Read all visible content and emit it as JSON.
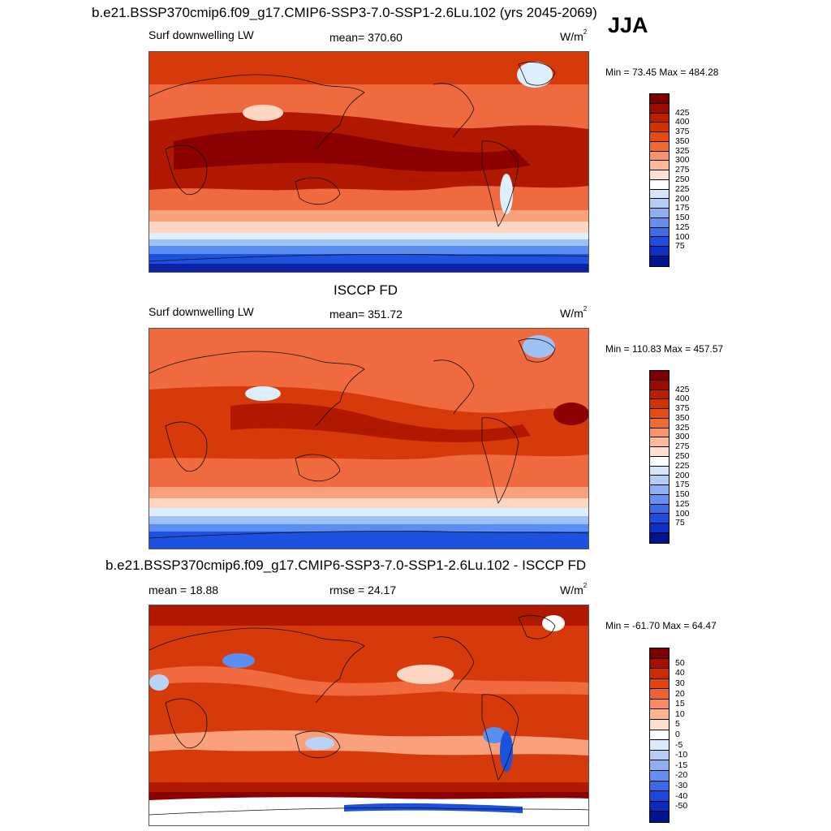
{
  "season": "JJA",
  "panels": [
    {
      "title": "b.e21.BSSP370cmip6.f09_g17.CMIP6-SSP3-7.0-SSP1-2.6Lu.102 (yrs 2045-2069)",
      "variable": "Surf downwelling LW",
      "stat_center": "mean= 370.60",
      "units_base": "W/m",
      "units_exp": "2",
      "minmax": "Min =  73.45 Max = 484.28",
      "levels": [
        "425",
        "400",
        "375",
        "350",
        "325",
        "300",
        "275",
        "250",
        "225",
        "200",
        "175",
        "150",
        "125",
        "100",
        "75"
      ],
      "colors": {
        "c0": "#8b0000",
        "c1": "#b01800",
        "c2": "#d63a0a",
        "c3": "#ef6a3e",
        "c4": "#f9a07c",
        "c5": "#fdd5c0",
        "c6": "#ddeeff",
        "c7": "#9dc0f5",
        "c8": "#5a8ef0",
        "c9": "#1c52de",
        "c10": "#0a22a6"
      }
    },
    {
      "title": "ISCCP FD",
      "variable": "Surf downwelling LW",
      "stat_center": "mean= 351.72",
      "units_base": "W/m",
      "units_exp": "2",
      "minmax": "Min = 110.83 Max = 457.57",
      "levels": [
        "425",
        "400",
        "375",
        "350",
        "325",
        "300",
        "275",
        "250",
        "225",
        "200",
        "175",
        "150",
        "125",
        "100",
        "75"
      ],
      "colors": {
        "c0": "#8b0000",
        "c1": "#b01800",
        "c2": "#d63a0a",
        "c3": "#ef6a3e",
        "c4": "#f9a07c",
        "c5": "#fdd5c0",
        "c6": "#ddeeff",
        "c7": "#9dc0f5",
        "c8": "#5a8ef0",
        "c9": "#1c52de",
        "c10": "#0a22a6"
      }
    },
    {
      "title": "b.e21.BSSP370cmip6.f09_g17.CMIP6-SSP3-7.0-SSP1-2.6Lu.102 - ISCCP FD",
      "stat_left": "mean =  18.88",
      "stat_center": "rmse =  24.17",
      "units_base": "W/m",
      "units_exp": "2",
      "minmax": "Min = -61.70 Max =  64.47",
      "levels": [
        "50",
        "40",
        "30",
        "20",
        "15",
        "10",
        "5",
        "0",
        "-5",
        "-10",
        "-15",
        "-20",
        "-30",
        "-40",
        "-50"
      ],
      "colors": {
        "c0": "#8b0000",
        "c1": "#b01800",
        "c2": "#d63a0a",
        "c3": "#ef6a3e",
        "c4": "#f9a07c",
        "c5": "#fdd5c0",
        "c6": "#ffffff",
        "c7": "#b9d2f7",
        "c8": "#5a8ef0",
        "c9": "#1c52de",
        "c10": "#0a22a6"
      }
    }
  ],
  "colorbar_fills": [
    [
      "#7d0000",
      "#9e0a00",
      "#be1e00",
      "#d43300",
      "#e34d14",
      "#f06a36",
      "#f8946b",
      "#fcb999",
      "#fde0cd",
      "#ffffff",
      "#d9e6fa",
      "#b6cdf6",
      "#8eb0f2",
      "#6590ee",
      "#3d6ce8",
      "#1e4ddf",
      "#0b2fc7",
      "#00148f"
    ],
    [
      "#7d0000",
      "#9e0a00",
      "#be1e00",
      "#d43300",
      "#e34d14",
      "#f06a36",
      "#f8946b",
      "#fcb999",
      "#fde0cd",
      "#ffffff",
      "#d9e6fa",
      "#b6cdf6",
      "#8eb0f2",
      "#6590ee",
      "#3d6ce8",
      "#1e4ddf",
      "#0b2fc7",
      "#00148f"
    ],
    [
      "#7d0000",
      "#a80e00",
      "#cc2a00",
      "#e04410",
      "#ee6232",
      "#f78a60",
      "#fbb591",
      "#fddfcc",
      "#ffffff",
      "#dce8fb",
      "#b6cdf6",
      "#8eb0f2",
      "#6590ee",
      "#3a68e6",
      "#1c47dc",
      "#0b2bbf",
      "#00148f"
    ]
  ]
}
